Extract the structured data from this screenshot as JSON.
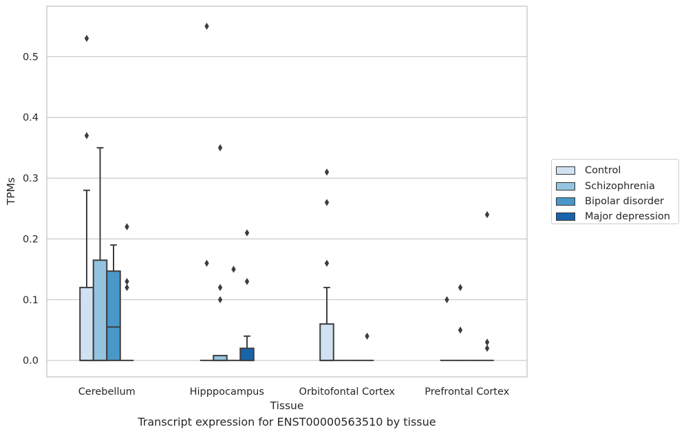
{
  "chart_data": {
    "type": "box",
    "xlabel": "Tissue",
    "ylabel": "TPMs",
    "caption": "Transcript expression for ENST00000563510 by tissue",
    "categories": [
      "Cerebellum",
      "Hipppocampus",
      "Orbitofontal Cortex",
      "Prefrontal Cortex"
    ],
    "ylim": [
      -0.027,
      0.583
    ],
    "yticks": [
      0.0,
      0.1,
      0.2,
      0.3,
      0.4,
      0.5
    ],
    "ytick_labels": [
      "0.0",
      "0.1",
      "0.2",
      "0.3",
      "0.4",
      "0.5"
    ],
    "grid": "horizontal",
    "legend_position": "right",
    "series": [
      {
        "name": "Control",
        "color": "#d0e1f2",
        "boxes": [
          {
            "q1": 0.0,
            "median": 0.0,
            "q3": 0.12,
            "whisker_low": 0.0,
            "whisker_high": 0.28,
            "outliers": [
              0.53,
              0.37
            ]
          },
          {
            "q1": 0.0,
            "median": 0.0,
            "q3": 0.0,
            "whisker_low": 0.0,
            "whisker_high": 0.0,
            "outliers": [
              0.55,
              0.16
            ]
          },
          {
            "q1": 0.0,
            "median": 0.0,
            "q3": 0.06,
            "whisker_low": 0.0,
            "whisker_high": 0.12,
            "outliers": [
              0.31,
              0.26,
              0.16
            ]
          },
          {
            "q1": 0.0,
            "median": 0.0,
            "q3": 0.0,
            "whisker_low": 0.0,
            "whisker_high": 0.0,
            "outliers": [
              0.1
            ]
          }
        ]
      },
      {
        "name": "Schizophrenia",
        "color": "#94c4df",
        "boxes": [
          {
            "q1": 0.0,
            "median": 0.0,
            "q3": 0.165,
            "whisker_low": 0.0,
            "whisker_high": 0.35,
            "outliers": []
          },
          {
            "q1": 0.0,
            "median": 0.0,
            "q3": 0.008,
            "whisker_low": 0.0,
            "whisker_high": 0.008,
            "outliers": [
              0.35,
              0.12,
              0.1
            ]
          },
          {
            "q1": 0.0,
            "median": 0.0,
            "q3": 0.0,
            "whisker_low": 0.0,
            "whisker_high": 0.0,
            "outliers": []
          },
          {
            "q1": 0.0,
            "median": 0.0,
            "q3": 0.0,
            "whisker_low": 0.0,
            "whisker_high": 0.0,
            "outliers": [
              0.12,
              0.05
            ]
          }
        ]
      },
      {
        "name": "Bipolar disorder",
        "color": "#4a98c9",
        "boxes": [
          {
            "q1": 0.0,
            "median": 0.055,
            "q3": 0.147,
            "whisker_low": 0.0,
            "whisker_high": 0.19,
            "outliers": []
          },
          {
            "q1": 0.0,
            "median": 0.0,
            "q3": 0.0,
            "whisker_low": 0.0,
            "whisker_high": 0.0,
            "outliers": [
              0.15
            ]
          },
          {
            "q1": 0.0,
            "median": 0.0,
            "q3": 0.0,
            "whisker_low": 0.0,
            "whisker_high": 0.0,
            "outliers": []
          },
          {
            "q1": 0.0,
            "median": 0.0,
            "q3": 0.0,
            "whisker_low": 0.0,
            "whisker_high": 0.0,
            "outliers": []
          }
        ]
      },
      {
        "name": "Major depression",
        "color": "#1764ab",
        "boxes": [
          {
            "q1": 0.0,
            "median": 0.0,
            "q3": 0.0,
            "whisker_low": 0.0,
            "whisker_high": 0.0,
            "outliers": [
              0.22,
              0.13,
              0.12
            ]
          },
          {
            "q1": 0.0,
            "median": 0.0,
            "q3": 0.02,
            "whisker_low": 0.0,
            "whisker_high": 0.04,
            "outliers": [
              0.21,
              0.13
            ]
          },
          {
            "q1": 0.0,
            "median": 0.0,
            "q3": 0.0,
            "whisker_low": 0.0,
            "whisker_high": 0.0,
            "outliers": [
              0.04
            ]
          },
          {
            "q1": 0.0,
            "median": 0.0,
            "q3": 0.0,
            "whisker_low": 0.0,
            "whisker_high": 0.0,
            "outliers": [
              0.24,
              0.03,
              0.02
            ]
          }
        ]
      }
    ]
  }
}
